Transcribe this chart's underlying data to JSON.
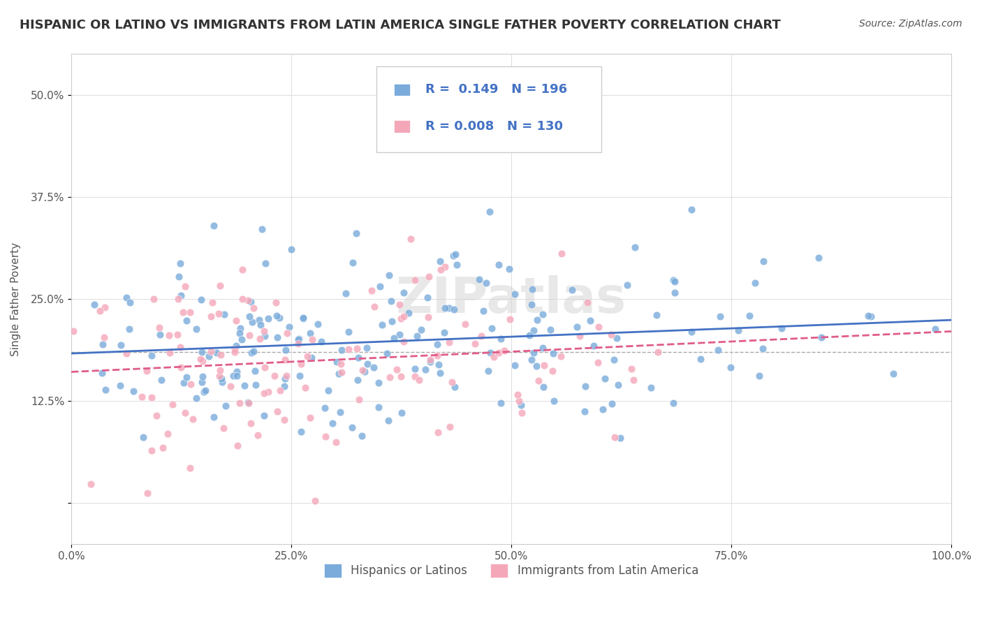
{
  "title": "HISPANIC OR LATINO VS IMMIGRANTS FROM LATIN AMERICA SINGLE FATHER POVERTY CORRELATION CHART",
  "source_text": "Source: ZipAtlas.com",
  "ylabel": "Single Father Poverty",
  "xlabel": "",
  "xlim": [
    0,
    100
  ],
  "ylim": [
    -5,
    55
  ],
  "yticks": [
    0,
    12.5,
    25.0,
    37.5,
    50.0
  ],
  "ytick_labels": [
    "",
    "12.5%",
    "25.0%",
    "37.5%",
    "50.0%"
  ],
  "xtick_labels": [
    "0.0%",
    "25.0%",
    "50.0%",
    "75.0%",
    "100.0%"
  ],
  "xticks": [
    0,
    25,
    50,
    75,
    100
  ],
  "blue_color": "#7aabdb",
  "pink_color": "#f4a7b9",
  "blue_line_color": "#4472c4",
  "pink_line_color": "#e05c8a",
  "R_blue": 0.149,
  "N_blue": 196,
  "R_pink": 0.008,
  "N_pink": 130,
  "legend_label_blue": "Hispanics or Latinos",
  "legend_label_pink": "Immigrants from Latin America",
  "watermark": "ZIPatlas",
  "title_fontsize": 13,
  "axis_fontsize": 11,
  "tick_fontsize": 11,
  "legend_fontsize": 12,
  "dashed_line_y": 18.5,
  "background_color": "#ffffff",
  "seed_blue": 42,
  "seed_pink": 123
}
